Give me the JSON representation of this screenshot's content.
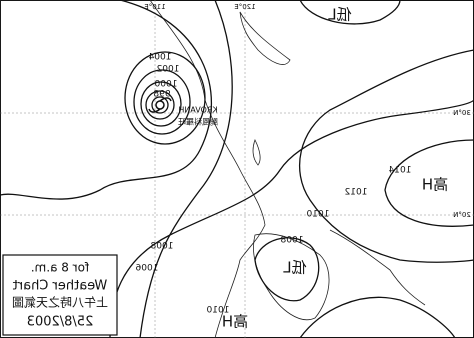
{
  "legend": {
    "title": "上午八時之天氣圖",
    "subtitle": "Weather Chart",
    "time": "for 8 a.m.",
    "date": "25/8/2003"
  },
  "typhoon": {
    "name": "KROVANH",
    "name_zh": "颱風科羅旺"
  },
  "isobars": [
    "1004",
    "1002",
    "1000",
    "998",
    "1008",
    "1006",
    "1010",
    "1012",
    "1014",
    "1008",
    "1010"
  ],
  "pressure_centers": [
    "低L",
    "高H",
    "低L",
    "高H"
  ],
  "grid_labels": [
    "110°E",
    "120°E",
    "30°N",
    "20°N"
  ]
}
